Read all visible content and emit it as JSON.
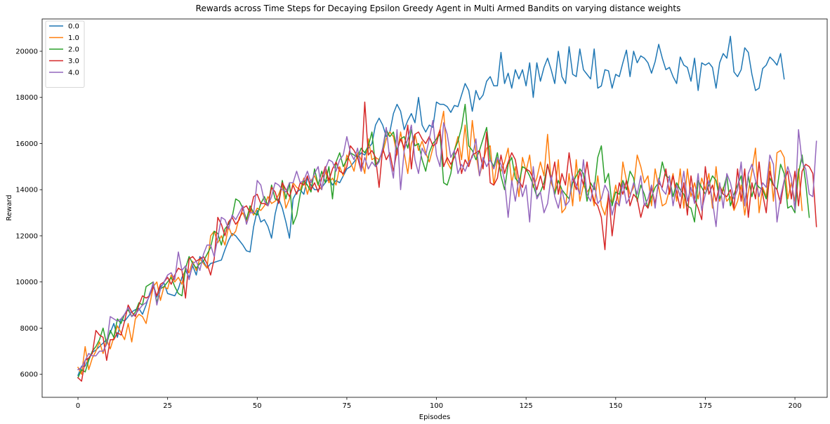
{
  "chart_data": {
    "type": "line",
    "title": "Rewards across Time Steps for Decaying Epsilon Greedy Agent in Multi Armed Bandits on varying distance weights",
    "xlabel": "Episodes",
    "ylabel": "Reward",
    "xlim": [
      -10,
      209
    ],
    "ylim": [
      5000,
      21400
    ],
    "xticks": [
      0,
      25,
      50,
      75,
      100,
      125,
      150,
      175,
      200
    ],
    "yticks": [
      6000,
      8000,
      10000,
      12000,
      14000,
      16000,
      18000,
      20000
    ],
    "grid": false,
    "legend_position": "top-left",
    "series": [
      {
        "name": "0.0",
        "color": "#1f77b4",
        "values": [
          5950,
          6350,
          6350,
          6700,
          6950,
          7050,
          7200,
          7350,
          7500,
          7800,
          8200,
          7600,
          8400,
          8300,
          8500,
          8700,
          8800,
          8850,
          8600,
          9000,
          9500,
          9900,
          9350,
          9800,
          9950,
          9500,
          9450,
          9400,
          9700,
          10200,
          10500,
          10200,
          10700,
          10300,
          11100,
          10900,
          10600,
          10800,
          10850,
          10900,
          10950,
          11400,
          11800,
          12100,
          12000,
          11800,
          11600,
          11350,
          11300,
          12400,
          13100,
          12600,
          12700,
          12400,
          11900,
          12950,
          13600,
          13200,
          12600,
          11900,
          13600,
          13900,
          14000,
          13800,
          14500,
          14200,
          14000,
          14000,
          14100,
          14300,
          14500,
          14200,
          14400,
          14300,
          14600,
          14900,
          15000,
          15200,
          15400,
          15600,
          15500,
          15800,
          16000,
          16800,
          17100,
          16800,
          16300,
          16500,
          17300,
          17700,
          17400,
          16600,
          17000,
          17300,
          16900,
          18000,
          16800,
          16500,
          16800,
          16700,
          17800,
          17700,
          17700,
          17600,
          17350,
          17650,
          17600,
          18100,
          18600,
          18300,
          17400,
          18300,
          17900,
          18100,
          18700,
          18900,
          18500,
          18500,
          19950,
          18600,
          19050,
          18400,
          19200,
          18800,
          19200,
          18500,
          19500,
          18000,
          19500,
          18700,
          19300,
          19700,
          19200,
          18600,
          20000,
          18900,
          18600,
          20200,
          19000,
          18900,
          20100,
          19200,
          19000,
          18800,
          20100,
          18400,
          18500,
          19200,
          19150,
          18400,
          19000,
          18900,
          19500,
          20050,
          18900,
          20000,
          19500,
          19800,
          19700,
          19500,
          19050,
          19550,
          20300,
          19700,
          19200,
          19300,
          18900,
          18600,
          19750,
          19400,
          19300,
          18700,
          19700,
          18300,
          19500,
          19400,
          19500,
          19300,
          18400,
          19500,
          19900,
          19700,
          20650,
          19100,
          18900,
          19200,
          20150,
          19950,
          19000,
          18300,
          18400,
          19250,
          19400,
          19750,
          19600,
          19400,
          19900,
          18800
        ]
      },
      {
        "name": "1.0",
        "color": "#ff7f0e",
        "values": [
          6300,
          6000,
          7200,
          6200,
          6700,
          7000,
          7400,
          6900,
          7500,
          7100,
          7600,
          8100,
          7800,
          7500,
          8200,
          7400,
          8400,
          8600,
          8500,
          8200,
          9000,
          9800,
          10000,
          9200,
          9800,
          9700,
          10300,
          10000,
          10200,
          9900,
          10600,
          10400,
          10900,
          10500,
          11000,
          10800,
          10600,
          12000,
          12200,
          11700,
          12000,
          11600,
          12400,
          12000,
          12200,
          12800,
          13000,
          12600,
          13200,
          12900,
          13200,
          13100,
          13300,
          13700,
          13400,
          13500,
          13800,
          14200,
          13200,
          13600,
          14300,
          14100,
          14000,
          14500,
          13800,
          14400,
          14600,
          14200,
          14000,
          14800,
          14300,
          14500,
          14200,
          15000,
          14600,
          15500,
          15200,
          14800,
          15600,
          15300,
          14700,
          16200,
          15300,
          15400,
          15300,
          15600,
          16200,
          16500,
          16300,
          15500,
          16500,
          15600,
          14700,
          16000,
          16400,
          15700,
          16100,
          15600,
          15200,
          15800,
          16200,
          16600,
          17400,
          15200,
          14900,
          15700,
          16300,
          15300,
          16800,
          15100,
          17000,
          15600,
          14600,
          15200,
          15800,
          15900,
          14200,
          15300,
          14800,
          15200,
          15800,
          14300,
          15000,
          13700,
          15400,
          14800,
          15500,
          14100,
          14500,
          15200,
          14600,
          16400,
          14300,
          13900,
          15300,
          13000,
          13200,
          14700,
          13300,
          15300,
          13500,
          14200,
          13900,
          14100,
          13300,
          14600,
          13300,
          12900,
          13700,
          13400,
          14200,
          13300,
          15200,
          14400,
          13800,
          14100,
          15500,
          15000,
          14300,
          14600,
          13300,
          14900,
          14100,
          13300,
          13400,
          14000,
          14700,
          13500,
          14900,
          13200,
          14900,
          13700,
          14300,
          13600,
          14500,
          14000,
          14700,
          13200,
          15000,
          13500,
          14100,
          13500,
          13700,
          13100,
          13500,
          14200,
          12900,
          13900,
          14800,
          15800,
          13000,
          14100,
          13700,
          15200,
          13500,
          15600,
          15700,
          15400,
          13600,
          14300,
          13500,
          14900,
          13100
        ]
      },
      {
        "name": "2.0",
        "color": "#2ca02c",
        "values": [
          5850,
          6200,
          6100,
          6600,
          7000,
          7200,
          7500,
          8000,
          7300,
          7900,
          7600,
          8400,
          8200,
          8600,
          8800,
          8500,
          8700,
          9100,
          9000,
          9800,
          9900,
          10000,
          9100,
          9700,
          9800,
          10000,
          10200,
          9800,
          9500,
          9400,
          10600,
          11100,
          10800,
          10600,
          10800,
          10900,
          11200,
          11500,
          12200,
          12100,
          11600,
          12300,
          12500,
          12800,
          13600,
          13500,
          13200,
          12700,
          13300,
          13000,
          12900,
          13400,
          13700,
          13300,
          14200,
          13600,
          13500,
          14400,
          13600,
          14300,
          12500,
          12900,
          13800,
          14400,
          14200,
          13900,
          14900,
          14200,
          14800,
          14300,
          15000,
          13600,
          15200,
          15600,
          15000,
          15300,
          15600,
          15500,
          15400,
          15800,
          15600,
          15900,
          16500,
          15000,
          15300,
          15700,
          16600,
          16300,
          16500,
          15700,
          16200,
          16300,
          15800,
          16600,
          15900,
          16000,
          15300,
          14800,
          15600,
          16000,
          16200,
          16400,
          14300,
          14200,
          14700,
          15700,
          16100,
          16700,
          17700,
          15900,
          15700,
          15300,
          15700,
          16200,
          16700,
          15300,
          15000,
          15600,
          14600,
          14000,
          15100,
          15400,
          14500,
          14300,
          15000,
          14900,
          14600,
          14200,
          13700,
          13900,
          14300,
          15100,
          14500,
          13800,
          14400,
          14000,
          13800,
          13600,
          14300,
          14600,
          14900,
          14700,
          13500,
          14300,
          14000,
          15400,
          15900,
          14300,
          14700,
          13300,
          13900,
          13800,
          14400,
          14000,
          14800,
          14500,
          13500,
          14200,
          13800,
          13200,
          13700,
          14100,
          14300,
          15200,
          14600,
          14500,
          13700,
          14300,
          14000,
          13800,
          13300,
          13200,
          12600,
          14400,
          14100,
          13800,
          14200,
          14600,
          14400,
          13600,
          14000,
          14600,
          13300,
          13800,
          14200,
          14600,
          13400,
          14600,
          13700,
          14300,
          14100,
          14000,
          13600,
          14500,
          14200,
          14000,
          15100,
          14700,
          13200,
          13300,
          13000,
          14700,
          15500,
          14300,
          12800
        ]
      },
      {
        "name": "3.0",
        "color": "#d62728",
        "values": [
          5850,
          5700,
          6600,
          6700,
          6900,
          7900,
          7700,
          7600,
          6600,
          7500,
          7500,
          7800,
          7700,
          8300,
          9000,
          8700,
          8500,
          9000,
          9400,
          9300,
          9400,
          9800,
          9400,
          9900,
          10000,
          10200,
          9900,
          10300,
          10600,
          10500,
          9300,
          11000,
          11100,
          10900,
          11000,
          11100,
          10800,
          10300,
          11000,
          12800,
          12500,
          12000,
          12600,
          12800,
          12500,
          12700,
          13200,
          13300,
          13000,
          13700,
          13800,
          13400,
          13400,
          13300,
          14100,
          13900,
          13400,
          14300,
          14000,
          13700,
          14200,
          13800,
          14300,
          14200,
          14600,
          14000,
          14300,
          13900,
          14500,
          15000,
          14400,
          14900,
          15200,
          14800,
          14700,
          15000,
          15900,
          15700,
          15400,
          14800,
          17800,
          15500,
          15700,
          15400,
          14100,
          15800,
          15300,
          15600,
          14800,
          15700,
          16200,
          15800,
          16800,
          14900,
          16400,
          16500,
          16200,
          16000,
          16300,
          15900,
          16000,
          16600,
          15000,
          15400,
          15100,
          15400,
          15800,
          14700,
          15300,
          15000,
          15500,
          15600,
          15700,
          14900,
          16500,
          14300,
          14200,
          14500,
          15500,
          14700,
          15200,
          15600,
          15300,
          14400,
          14100,
          14900,
          14800,
          14500,
          14000,
          14600,
          14000,
          15100,
          14400,
          15200,
          13800,
          14700,
          14200,
          15600,
          14500,
          14000,
          14800,
          14200,
          15200,
          14100,
          13500,
          13300,
          12800,
          11400,
          13900,
          12000,
          13300,
          14300,
          13800,
          14400,
          13300,
          13800,
          13600,
          12800,
          13400,
          13200,
          14100,
          13400,
          14300,
          14100,
          14900,
          13800,
          14600,
          13900,
          13200,
          14300,
          12900,
          14600,
          13600,
          13200,
          12700,
          15000,
          13800,
          14200,
          13500,
          14200,
          13800,
          13700,
          14000,
          13200,
          14900,
          13500,
          14900,
          12800,
          14300,
          13600,
          15200,
          13800,
          13000,
          14800,
          14200,
          14000,
          13400,
          14400,
          14800,
          13600,
          14800,
          13300,
          14800,
          15100,
          15000,
          14700,
          12400
        ]
      },
      {
        "name": "4.0",
        "color": "#9467bd",
        "values": [
          6200,
          6300,
          6600,
          6900,
          6800,
          6800,
          7000,
          7000,
          7300,
          8500,
          8400,
          8300,
          8400,
          8600,
          8900,
          8500,
          8600,
          8800,
          9000,
          9100,
          9400,
          10000,
          9000,
          9700,
          10000,
          10300,
          10400,
          10100,
          11300,
          10500,
          10700,
          10100,
          10800,
          10900,
          10500,
          11200,
          11600,
          11600,
          11100,
          11900,
          12800,
          12700,
          12300,
          12900,
          12700,
          13000,
          13300,
          12500,
          13000,
          13000,
          14400,
          14200,
          13500,
          13300,
          13700,
          14300,
          14200,
          14000,
          13900,
          14300,
          14300,
          14800,
          14300,
          14400,
          14800,
          14300,
          14700,
          15000,
          14000,
          14900,
          15300,
          15200,
          14800,
          15300,
          15500,
          16300,
          15600,
          15300,
          15800,
          14800,
          15400,
          14900,
          15200,
          15000,
          15200,
          15800,
          16700,
          15300,
          14500,
          16600,
          14000,
          15700,
          16200,
          16800,
          15300,
          14700,
          15800,
          15500,
          16200,
          17000,
          15500,
          15000,
          16900,
          16400,
          15400,
          15700,
          14700,
          15100,
          14800,
          15200,
          15400,
          16200,
          14600,
          15400,
          15000,
          15300,
          14900,
          15400,
          15100,
          14400,
          12800,
          14400,
          13500,
          14500,
          13700,
          14200,
          12600,
          15000,
          13600,
          13900,
          13000,
          13400,
          14600,
          13700,
          13200,
          14000,
          13300,
          13500,
          14600,
          14200,
          13800,
          15300,
          13800,
          13500,
          14300,
          13400,
          13600,
          14200,
          13900,
          12900,
          13500,
          13300,
          14300,
          13400,
          13700,
          14300,
          13800,
          14600,
          13300,
          13600,
          14200,
          13200,
          14500,
          14000,
          13800,
          14600,
          13300,
          14200,
          13700,
          14800,
          13500,
          14100,
          13400,
          14700,
          13100,
          13800,
          14400,
          13500,
          12400,
          14300,
          13200,
          14700,
          14300,
          13600,
          14000,
          15200,
          13300,
          14700,
          15100,
          14400,
          13700,
          14300,
          14100,
          15500,
          15100,
          12600,
          13700,
          14400,
          15000,
          14500,
          13100,
          16600,
          15200,
          14900,
          13800,
          13700,
          16100
        ]
      }
    ]
  }
}
